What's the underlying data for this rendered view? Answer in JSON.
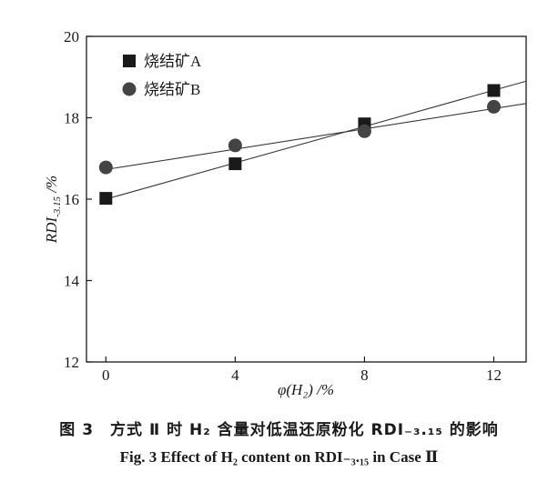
{
  "chart_data": {
    "type": "scatter",
    "x": [
      0,
      4,
      8,
      12
    ],
    "series": [
      {
        "name": "烧结矿A",
        "marker": "square",
        "color": "#1a1a1a",
        "values": [
          16.02,
          16.87,
          17.85,
          18.67
        ],
        "fit_line": [
          16.0,
          18.9
        ]
      },
      {
        "name": "烧结矿B",
        "marker": "circle",
        "color": "#444444",
        "values": [
          16.78,
          17.32,
          17.67,
          18.27
        ],
        "fit_line": [
          16.73,
          18.35
        ]
      }
    ],
    "xlim": [
      -0.6,
      13.0
    ],
    "ylim": [
      12,
      20
    ],
    "xticks": [
      0,
      4,
      8,
      12
    ],
    "yticks": [
      12,
      14,
      16,
      18,
      20
    ],
    "xlabel": "φ(H₂) /%",
    "ylabel": "RDI-3.15 /%",
    "ylabel_main": "RDI",
    "ylabel_sub": "-3.15",
    "ylabel_unit": " /%",
    "legend_position": "top-left",
    "grid": false
  },
  "caption_cn": "图 3　方式 Ⅱ 时 H₂ 含量对低温还原粉化 RDI₋₃.₁₅ 的影响",
  "caption_en": "Fig. 3   Effect of H₂ content on RDI₋₃.₁₅ in Case Ⅱ"
}
